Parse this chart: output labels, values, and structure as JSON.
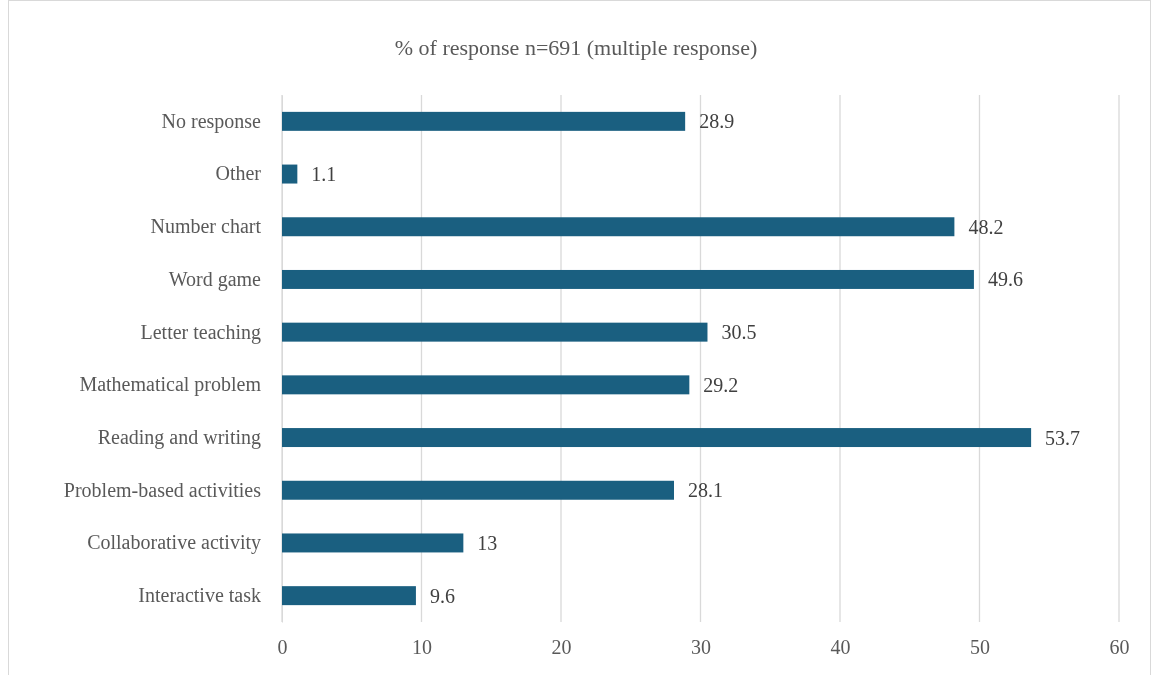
{
  "chart_data": {
    "type": "bar",
    "orientation": "horizontal",
    "title": "% of response n=691 (multiple response)",
    "categories": [
      "No response",
      "Other",
      "Number chart",
      "Word game",
      "Letter teaching",
      "Mathematical problem",
      "Reading and writing",
      "Problem-based activities",
      "Collaborative activity",
      "Interactive task"
    ],
    "values": [
      28.9,
      1.1,
      48.2,
      49.6,
      30.5,
      29.2,
      53.7,
      28.1,
      13,
      9.6
    ],
    "color": "#1a5f80",
    "xlim": [
      0,
      60
    ],
    "xticks": [
      0,
      10,
      20,
      30,
      40,
      50,
      60
    ],
    "grid": "x",
    "data_labels": true
  }
}
